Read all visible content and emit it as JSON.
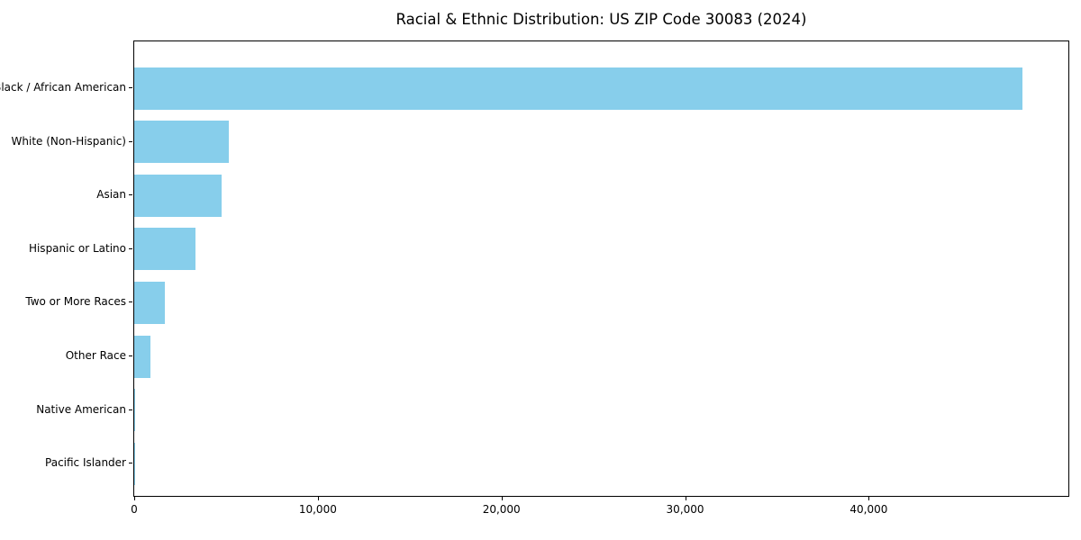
{
  "page": {
    "background_color": "#ffffff",
    "text_color": "#000000"
  },
  "chart_data": {
    "type": "bar",
    "orientation": "horizontal",
    "title": "Racial & Ethnic Distribution: US ZIP Code 30083 (2024)",
    "categories": [
      "Black / African American",
      "White (Non-Hispanic)",
      "Asian",
      "Hispanic or Latino",
      "Two or More Races",
      "Other Race",
      "Native American",
      "Pacific Islander"
    ],
    "values": [
      48370,
      5150,
      4750,
      3330,
      1665,
      870,
      60,
      10
    ],
    "xlabel": "",
    "ylabel": "",
    "xlim": [
      0,
      50870
    ],
    "xticks": [
      0,
      10000,
      20000,
      30000,
      40000
    ],
    "xtick_labels": [
      "0",
      "10,000",
      "20,000",
      "30,000",
      "40,000"
    ],
    "grid": false,
    "legend": "none",
    "bar_color": "#87CEEB",
    "axis_color": "#000000",
    "text_color": "#000000"
  }
}
